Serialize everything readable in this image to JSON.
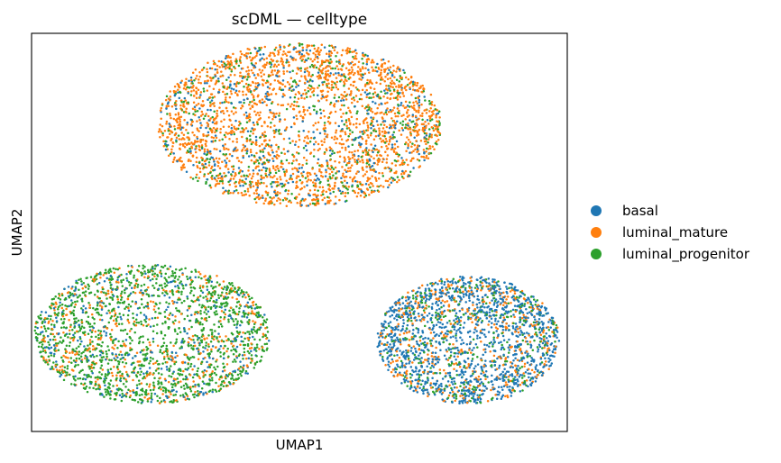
{
  "chart_data": {
    "type": "scatter",
    "title": "scDML — celltype",
    "xlabel": "UMAP1",
    "ylabel": "UMAP2",
    "xlim": [
      0,
      10
    ],
    "ylim": [
      0,
      10
    ],
    "grid": false,
    "ticks": false,
    "legend_position": "right",
    "series": [
      {
        "name": "basal",
        "color": "#1f77b4"
      },
      {
        "name": "luminal_mature",
        "color": "#ff7f0e"
      },
      {
        "name": "luminal_progenitor",
        "color": "#2ca02c"
      }
    ],
    "clusters": [
      {
        "center": [
          5.0,
          7.7
        ],
        "radii": [
          2.65,
          2.05
        ],
        "counts": [
          450,
          2100,
          500
        ]
      },
      {
        "center": [
          2.25,
          2.45
        ],
        "radii": [
          2.2,
          1.75
        ],
        "counts": [
          350,
          500,
          1400
        ]
      },
      {
        "center": [
          8.15,
          2.3
        ],
        "radii": [
          1.7,
          1.6
        ],
        "counts": [
          1300,
          450,
          350
        ]
      }
    ]
  }
}
